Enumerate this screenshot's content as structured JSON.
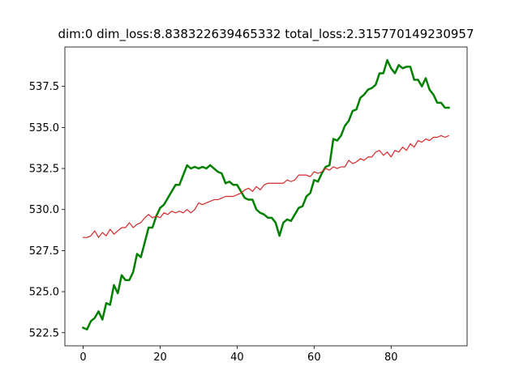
{
  "chart_data": {
    "type": "line",
    "title": "dim:0 dim_loss:8.838322639465332 total_loss:2.315770149230957",
    "xlabel": "",
    "ylabel": "",
    "xlim": [
      -4.75,
      99.75
    ],
    "ylim": [
      521.7,
      539.9
    ],
    "xticks": [
      0,
      20,
      40,
      60,
      80
    ],
    "yticks": [
      522.5,
      525.0,
      527.5,
      530.0,
      532.5,
      535.0,
      537.5
    ],
    "ytick_labels": [
      "522.5",
      "525.0",
      "527.5",
      "530.0",
      "532.5",
      "535.0",
      "537.5"
    ],
    "grid": false,
    "legend": "none",
    "x": [
      0,
      1,
      2,
      3,
      4,
      5,
      6,
      7,
      8,
      9,
      10,
      11,
      12,
      13,
      14,
      15,
      16,
      17,
      18,
      19,
      20,
      21,
      22,
      23,
      24,
      25,
      26,
      27,
      28,
      29,
      30,
      31,
      32,
      33,
      34,
      35,
      36,
      37,
      38,
      39,
      40,
      41,
      42,
      43,
      44,
      45,
      46,
      47,
      48,
      49,
      50,
      51,
      52,
      53,
      54,
      55,
      56,
      57,
      58,
      59,
      60,
      61,
      62,
      63,
      64,
      65,
      66,
      67,
      68,
      69,
      70,
      71,
      72,
      73,
      74,
      75,
      76,
      77,
      78,
      79,
      80,
      81,
      82,
      83,
      84,
      85,
      86,
      87,
      88,
      89,
      90,
      91,
      92,
      93,
      94,
      95
    ],
    "series": [
      {
        "color": "#008000",
        "width": 2.5,
        "values": [
          522.8,
          522.7,
          523.2,
          523.4,
          523.8,
          523.3,
          524.3,
          524.2,
          525.4,
          524.9,
          526.0,
          525.7,
          525.7,
          526.2,
          527.3,
          527.1,
          528.0,
          528.9,
          528.9,
          529.6,
          530.1,
          530.3,
          530.7,
          531.1,
          531.5,
          531.5,
          532.1,
          532.7,
          532.5,
          532.6,
          532.5,
          532.6,
          532.5,
          532.7,
          532.5,
          532.3,
          532.2,
          531.6,
          531.7,
          531.5,
          531.5,
          531.1,
          530.7,
          530.6,
          530.6,
          530.0,
          529.8,
          529.7,
          529.5,
          529.5,
          529.2,
          528.4,
          529.2,
          529.4,
          529.3,
          529.7,
          530.1,
          530.2,
          530.8,
          531.0,
          531.8,
          531.7,
          532.2,
          532.6,
          532.7,
          534.3,
          534.2,
          534.5,
          535.1,
          535.4,
          536.0,
          536.1,
          536.8,
          537.0,
          537.3,
          537.4,
          537.6,
          538.3,
          538.3,
          539.1,
          538.6,
          538.3,
          538.8,
          538.6,
          538.7,
          538.7,
          537.9,
          537.9,
          537.5,
          538.0,
          537.3,
          537.0,
          536.5,
          536.5,
          536.2,
          536.2
        ]
      },
      {
        "color": "#d62728",
        "width": 1.2,
        "values": [
          528.3,
          528.3,
          528.4,
          528.7,
          528.3,
          528.6,
          528.4,
          528.8,
          528.5,
          528.7,
          528.9,
          528.9,
          529.2,
          528.9,
          529.1,
          529.2,
          529.5,
          529.7,
          529.5,
          529.6,
          529.5,
          529.8,
          529.7,
          529.9,
          529.8,
          529.9,
          529.8,
          530.0,
          529.8,
          530.0,
          530.4,
          530.3,
          530.4,
          530.5,
          530.6,
          530.6,
          530.7,
          530.8,
          530.8,
          530.8,
          530.9,
          531.0,
          531.2,
          531.3,
          531.1,
          531.4,
          531.2,
          531.5,
          531.6,
          531.6,
          531.6,
          531.6,
          531.6,
          531.8,
          531.7,
          531.8,
          532.1,
          532.1,
          532.1,
          532.0,
          532.3,
          532.2,
          532.3,
          532.5,
          532.4,
          532.6,
          532.5,
          532.6,
          532.6,
          533.0,
          532.8,
          532.9,
          533.1,
          533.0,
          533.2,
          533.2,
          533.5,
          533.6,
          533.3,
          533.5,
          533.2,
          533.6,
          533.5,
          533.8,
          533.6,
          534.0,
          533.8,
          534.2,
          534.1,
          534.3,
          534.2,
          534.4,
          534.4,
          534.5,
          534.4,
          534.5
        ]
      }
    ]
  }
}
